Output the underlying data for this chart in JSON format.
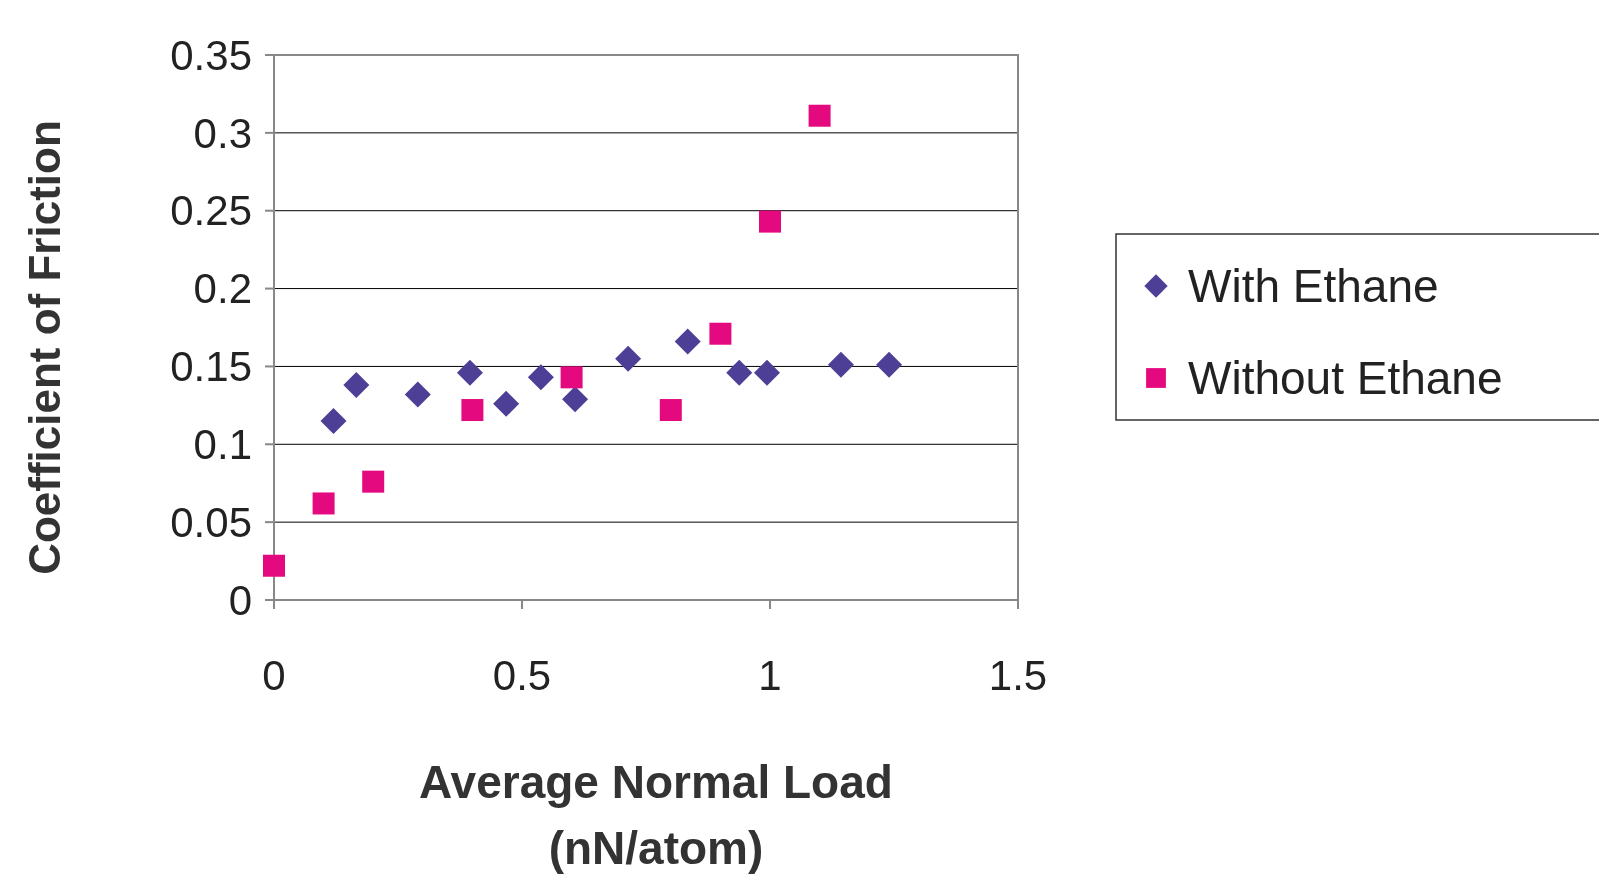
{
  "chart_data": {
    "type": "scatter",
    "xlabel": "Average Normal Load (nN/atom)",
    "ylabel": "Coefficient of Friction",
    "xlim": [
      0,
      1.5
    ],
    "ylim": [
      0,
      0.35
    ],
    "xticks": [
      0,
      0.5,
      1,
      1.5
    ],
    "yticks": [
      0,
      0.05,
      0.1,
      0.15,
      0.2,
      0.25,
      0.3,
      0.35
    ],
    "grid": "y",
    "legend": "right",
    "series": [
      {
        "name": "With Ethane",
        "color": "#4e3f96",
        "marker": "diamond",
        "x": [
          0.12,
          0.166,
          0.29,
          0.395,
          0.468,
          0.538,
          0.607,
          0.714,
          0.834,
          0.938,
          0.994,
          1.143,
          1.24
        ],
        "values": [
          0.115,
          0.138,
          0.132,
          0.146,
          0.126,
          0.143,
          0.129,
          0.155,
          0.166,
          0.146,
          0.146,
          0.151,
          0.151
        ]
      },
      {
        "name": "Without Ethane",
        "color": "#e5097f",
        "marker": "square",
        "x": [
          0,
          0.1,
          0.2,
          0.4,
          0.6,
          0.8,
          0.9,
          1.0,
          1.1
        ],
        "values": [
          0.022,
          0.062,
          0.076,
          0.122,
          0.143,
          0.122,
          0.171,
          0.243,
          0.311
        ]
      }
    ]
  }
}
